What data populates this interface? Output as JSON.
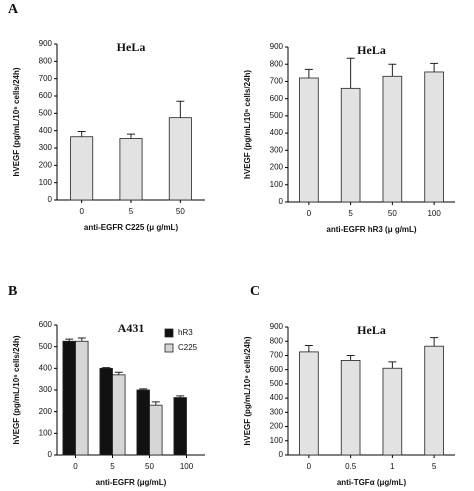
{
  "chart_data": [
    {
      "type": "bar",
      "panel_label": "A",
      "title": "HeLa",
      "x_label": "anti-EGFR C225 (μ g/mL)",
      "y_label": "hVEGF (pg/mL/10⁶ cells/24h)",
      "categories": [
        "0",
        "5",
        "50"
      ],
      "values": [
        365,
        355,
        475
      ],
      "errors": [
        30,
        25,
        95
      ],
      "color": "#e2e2e2",
      "ylim": [
        0,
        900
      ],
      "yticks": [
        0,
        100,
        200,
        300,
        400,
        500,
        600,
        700,
        800,
        900
      ]
    },
    {
      "type": "bar",
      "title": "HeLa",
      "x_label": "anti-EGFR hR3 (μ g/mL)",
      "y_label": "hVEGF (pg/mL/10⁶ cells/24h)",
      "categories": [
        "0",
        "5",
        "50",
        "100"
      ],
      "values": [
        720,
        660,
        730,
        755
      ],
      "errors": [
        50,
        175,
        70,
        50
      ],
      "color": "#e2e2e2",
      "ylim": [
        0,
        900
      ],
      "yticks": [
        0,
        100,
        200,
        300,
        400,
        500,
        600,
        700,
        800,
        900
      ]
    },
    {
      "type": "bar",
      "panel_label": "B",
      "title": "A431",
      "x_label": "anti-EGFR (μg/mL)",
      "y_label": "hVEGF (pg/mL/10⁶ cells/24h)",
      "categories": [
        "0",
        "5",
        "50",
        "100"
      ],
      "series": [
        {
          "name": "hR3",
          "color": "#111111",
          "values": [
            525,
            400,
            300,
            265
          ],
          "errors": [
            10,
            3,
            5,
            8
          ]
        },
        {
          "name": "C225",
          "color": "#d6d6d6",
          "values": [
            525,
            370,
            230,
            null
          ],
          "errors": [
            15,
            12,
            15,
            null
          ]
        }
      ],
      "legend": "upper right",
      "ylim": [
        0,
        600
      ],
      "yticks": [
        0,
        100,
        200,
        300,
        400,
        500,
        600
      ]
    },
    {
      "type": "bar",
      "panel_label": "C",
      "title": "HeLa",
      "x_label": "anti-TGFα (μg/mL)",
      "y_label": "hVEGF (pg/mL/10⁶ cells/24h)",
      "categories": [
        "0",
        "0.5",
        "1",
        "5"
      ],
      "values": [
        725,
        665,
        610,
        765
      ],
      "errors": [
        45,
        35,
        45,
        60
      ],
      "color": "#e2e2e2",
      "ylim": [
        0,
        900
      ],
      "yticks": [
        0,
        100,
        200,
        300,
        400,
        500,
        600,
        700,
        800,
        900
      ]
    }
  ]
}
